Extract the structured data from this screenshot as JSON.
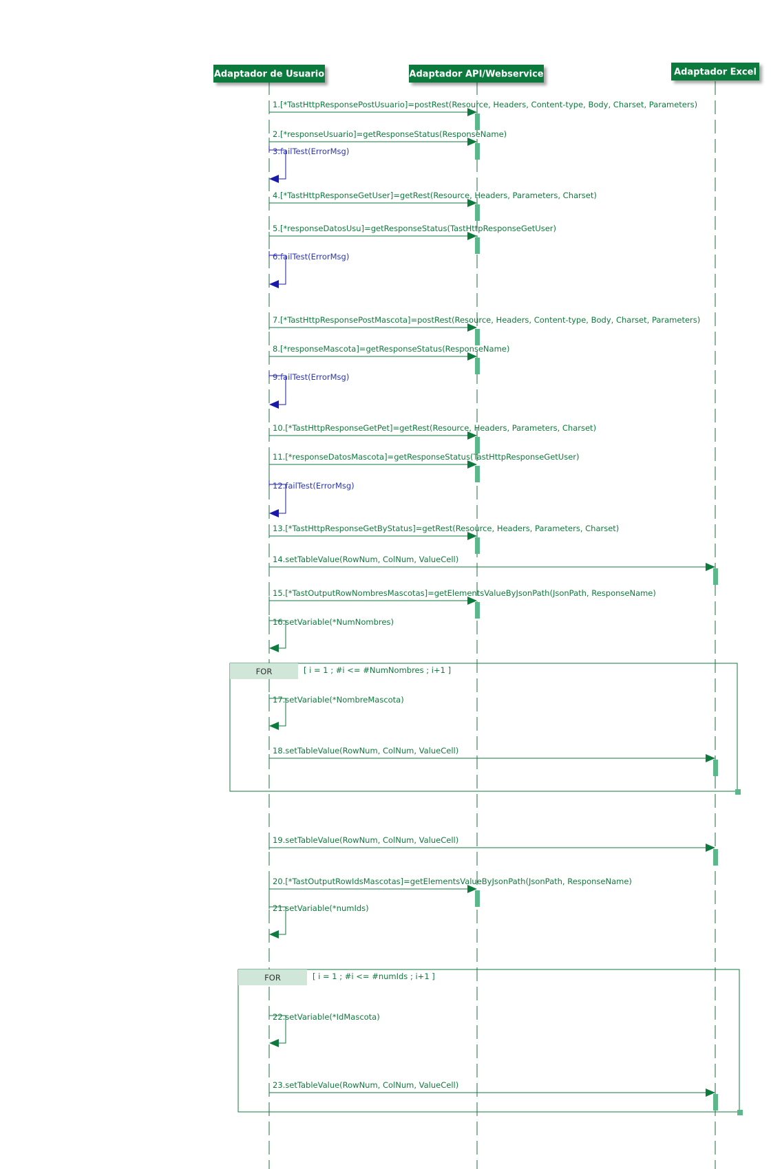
{
  "participants": [
    {
      "id": "user",
      "label": "Adaptador de Usuario"
    },
    {
      "id": "api",
      "label": "Adaptador API/Webservice"
    },
    {
      "id": "excel",
      "label": "Adaptador Excel"
    }
  ],
  "messages": [
    {
      "n": 1,
      "text": "1.[*TastHttpResponsePostUsuario]=postRest(Resource, Headers, Content-type, Body, Charset, Parameters)",
      "from": "user",
      "to": "api"
    },
    {
      "n": 2,
      "text": "2.[*responseUsuario]=getResponseStatus(ResponseName)",
      "from": "user",
      "to": "api"
    },
    {
      "n": 3,
      "text": "3.failTest(ErrorMsg)",
      "from": "user",
      "to": "user",
      "kind": "fail"
    },
    {
      "n": 4,
      "text": "4.[*TastHttpResponseGetUser]=getRest(Resource, Headers, Parameters, Charset)",
      "from": "user",
      "to": "api"
    },
    {
      "n": 5,
      "text": "5.[*responseDatosUsu]=getResponseStatus(TastHttpResponseGetUser)",
      "from": "user",
      "to": "api"
    },
    {
      "n": 6,
      "text": "6.failTest(ErrorMsg)",
      "from": "user",
      "to": "user",
      "kind": "fail"
    },
    {
      "n": 7,
      "text": "7.[*TastHttpResponsePostMascota]=postRest(Resource, Headers, Content-type, Body, Charset, Parameters)",
      "from": "user",
      "to": "api"
    },
    {
      "n": 8,
      "text": "8.[*responseMascota]=getResponseStatus(ResponseName)",
      "from": "user",
      "to": "api"
    },
    {
      "n": 9,
      "text": "9.failTest(ErrorMsg)",
      "from": "user",
      "to": "user",
      "kind": "fail"
    },
    {
      "n": 10,
      "text": "10.[*TastHttpResponseGetPet]=getRest(Resource, Headers, Parameters, Charset)",
      "from": "user",
      "to": "api"
    },
    {
      "n": 11,
      "text": "11.[*responseDatosMascota]=getResponseStatus(TastHttpResponseGetUser)",
      "from": "user",
      "to": "api"
    },
    {
      "n": 12,
      "text": "12.failTest(ErrorMsg)",
      "from": "user",
      "to": "user",
      "kind": "fail"
    },
    {
      "n": 13,
      "text": "13.[*TastHttpResponseGetByStatus]=getRest(Resource, Headers, Parameters, Charset)",
      "from": "user",
      "to": "api"
    },
    {
      "n": 14,
      "text": "14.setTableValue(RowNum, ColNum, ValueCell)",
      "from": "user",
      "to": "excel"
    },
    {
      "n": 15,
      "text": "15.[*TastOutputRowNombresMascotas]=getElementsValueByJsonPath(JsonPath, ResponseName)",
      "from": "user",
      "to": "api"
    },
    {
      "n": 16,
      "text": "16.setVariable(*NumNombres)",
      "from": "user",
      "to": "user",
      "kind": "self"
    },
    {
      "n": 17,
      "text": "17.setVariable(*NombreMascota)",
      "from": "user",
      "to": "user",
      "kind": "self"
    },
    {
      "n": 18,
      "text": "18.setTableValue(RowNum, ColNum, ValueCell)",
      "from": "user",
      "to": "excel"
    },
    {
      "n": 19,
      "text": "19.setTableValue(RowNum, ColNum, ValueCell)",
      "from": "user",
      "to": "excel"
    },
    {
      "n": 20,
      "text": "20.[*TastOutputRowIdsMascotas]=getElementsValueByJsonPath(JsonPath, ResponseName)",
      "from": "user",
      "to": "api"
    },
    {
      "n": 21,
      "text": "21.setVariable(*numIds)",
      "from": "user",
      "to": "user",
      "kind": "self"
    },
    {
      "n": 22,
      "text": "22.setVariable(*IdMascota)",
      "from": "user",
      "to": "user",
      "kind": "self"
    },
    {
      "n": 23,
      "text": "23.setTableValue(RowNum, ColNum, ValueCell)",
      "from": "user",
      "to": "excel"
    }
  ],
  "fragments": [
    {
      "label": "FOR",
      "condition": "[ i = 1 ; #i <= #NumNombres ; i+1 ]"
    },
    {
      "label": "FOR",
      "condition": "[ i = 1 ; #i <= #numIds ; i+1 ]"
    }
  ],
  "colors": {
    "actor_fill": "#0f7a3d",
    "line_green": "#0f7a3d",
    "fail_blue": "#1a1aa8",
    "activation": "#5cb88a",
    "loop_tab": "#cfe6d8"
  }
}
